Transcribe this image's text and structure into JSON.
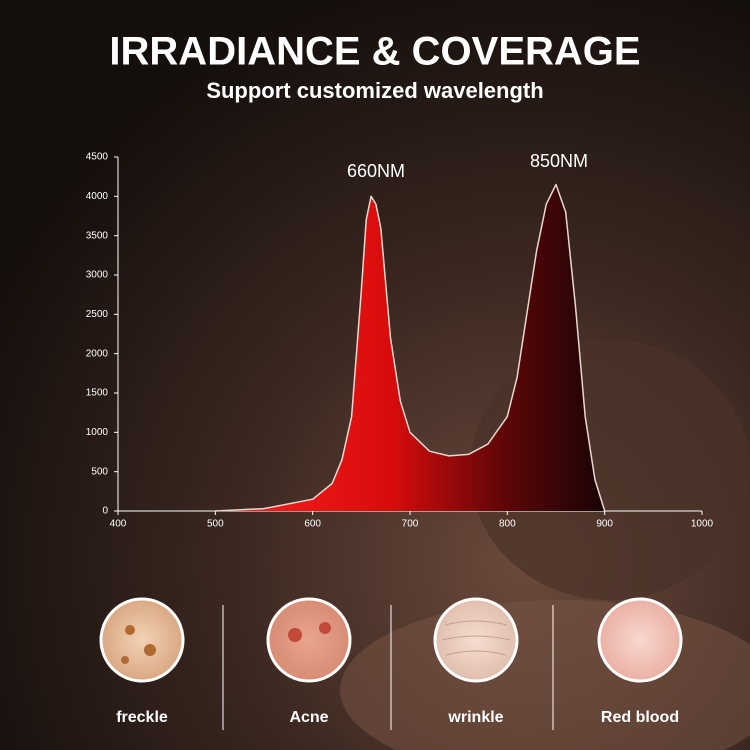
{
  "chart_data": {
    "type": "area",
    "title": "IRRADIANCE & COVERAGE",
    "subtitle": "Support customized wavelength",
    "annotations": [
      "660NM",
      "850NM"
    ],
    "x": [
      500,
      550,
      600,
      620,
      630,
      640,
      650,
      655,
      660,
      665,
      670,
      680,
      690,
      700,
      720,
      740,
      760,
      780,
      800,
      810,
      820,
      830,
      840,
      850,
      860,
      870,
      880,
      890,
      900
    ],
    "values": [
      0,
      30,
      150,
      350,
      650,
      1200,
      2800,
      3700,
      4000,
      3900,
      3600,
      2200,
      1400,
      1000,
      760,
      700,
      720,
      850,
      1200,
      1700,
      2500,
      3300,
      3900,
      4150,
      3800,
      2600,
      1200,
      400,
      0
    ],
    "color": "#e01010",
    "xlim": [
      400,
      1000
    ],
    "ylim": [
      0,
      4500
    ],
    "xticks": [
      400,
      500,
      600,
      700,
      800,
      900,
      1000
    ],
    "yticks": [
      0,
      500,
      1000,
      1500,
      2000,
      2500,
      3000,
      3500,
      4000,
      4500
    ]
  },
  "conditions": [
    "freckle",
    "Acne",
    "wrinkle",
    "Red blood"
  ]
}
